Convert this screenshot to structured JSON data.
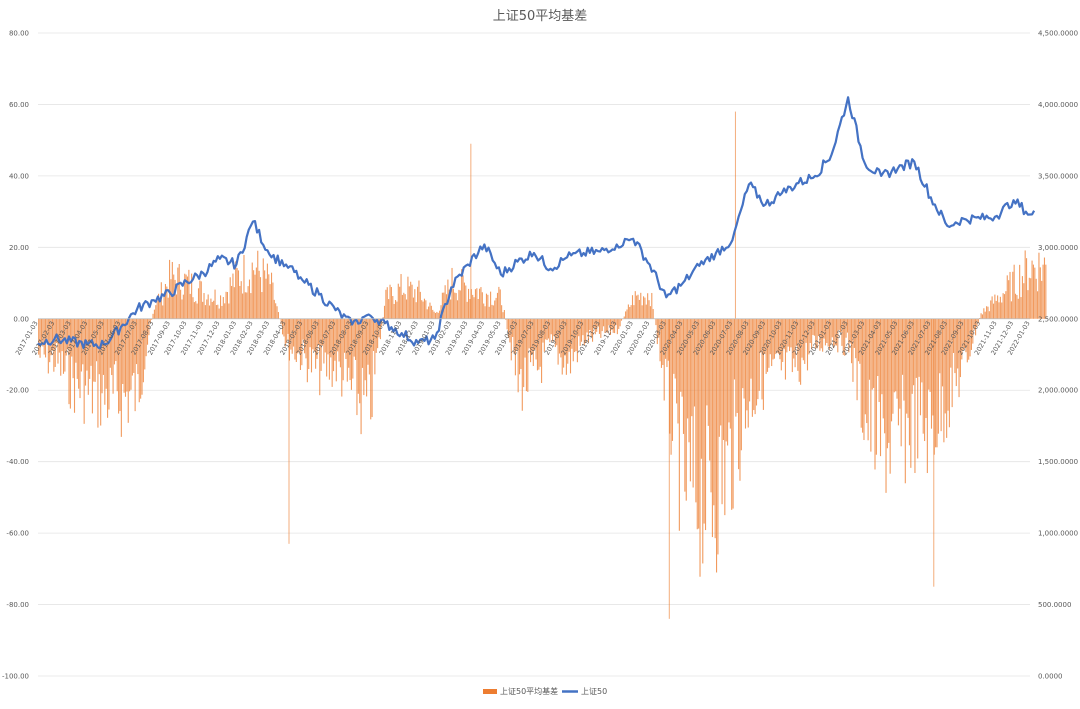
{
  "chart_data": {
    "type": "bar+line",
    "title": "上证50平均基差",
    "legend": {
      "placement": "bottom",
      "entries": [
        {
          "name": "上证50平均基差",
          "type": "bar",
          "color": "#ED7D31"
        },
        {
          "name": "上证50",
          "type": "line",
          "color": "#4472C4"
        }
      ]
    },
    "grid": true,
    "left_axis": {
      "ylim": [
        -100,
        80
      ],
      "ticks": [
        "80.00",
        "60.00",
        "40.00",
        "20.00",
        "0.00",
        "-20.00",
        "-40.00",
        "-60.00",
        "-80.00",
        "-100.00"
      ],
      "tick_values": [
        80,
        60,
        40,
        20,
        0,
        -20,
        -40,
        -60,
        -80,
        -100
      ]
    },
    "right_axis": {
      "ylim": [
        0,
        4500
      ],
      "ticks": [
        "4,500.0000",
        "4,000.0000",
        "3,500.0000",
        "3,000.0000",
        "2,500.0000",
        "2,000.0000",
        "1,500.0000",
        "1,000.0000",
        "500.0000",
        "0.0000"
      ],
      "tick_values": [
        4500,
        4000,
        3500,
        3000,
        2500,
        2000,
        1500,
        1000,
        500,
        0
      ]
    },
    "x_ticks": [
      "2017-01-03",
      "2017-02-03",
      "2017-03-03",
      "2017-04-03",
      "2017-05-03",
      "2017-06-03",
      "2017-07-03",
      "2017-08-03",
      "2017-09-03",
      "2017-10-03",
      "2017-11-03",
      "2017-12-03",
      "2018-01-03",
      "2018-02-03",
      "2018-03-03",
      "2018-04-03",
      "2018-05-03",
      "2018-06-03",
      "2018-07-03",
      "2018-08-03",
      "2018-09-03",
      "2018-10-03",
      "2018-11-03",
      "2018-12-03",
      "2019-01-03",
      "2019-02-03",
      "2019-03-03",
      "2019-04-03",
      "2019-05-03",
      "2019-06-03",
      "2019-07-03",
      "2019-08-03",
      "2019-09-03",
      "2019-10-03",
      "2019-11-03",
      "2019-12-03",
      "2020-01-03",
      "2020-02-03",
      "2020-03-03",
      "2020-04-03",
      "2020-05-03",
      "2020-06-03",
      "2020-07-03",
      "2020-08-03",
      "2020-09-03",
      "2020-10-03",
      "2020-11-03",
      "2020-12-03",
      "2021-01-03",
      "2021-02-03",
      "2021-03-03",
      "2021-04-03",
      "2021-05-03",
      "2021-06-03",
      "2021-07-03",
      "2021-08-03",
      "2021-09-03",
      "2021-10-03",
      "2021-11-03",
      "2021-12-03",
      "2022-01-03"
    ],
    "bar_series": {
      "name": "上证50平均基差",
      "x": [
        "2017-01",
        "2017-02",
        "2017-03",
        "2017-04",
        "2017-05",
        "2017-06",
        "2017-07",
        "2017-08",
        "2017-09",
        "2017-10",
        "2017-11",
        "2017-12",
        "2018-01",
        "2018-02",
        "2018-03",
        "2018-04",
        "2018-05",
        "2018-06",
        "2018-07",
        "2018-08",
        "2018-09",
        "2018-10",
        "2018-11",
        "2018-12",
        "2019-01",
        "2019-02",
        "2019-03",
        "2019-04",
        "2019-05",
        "2019-06",
        "2019-07",
        "2019-08",
        "2019-09",
        "2019-10",
        "2019-11",
        "2019-12",
        "2020-01",
        "2020-02",
        "2020-03",
        "2020-04",
        "2020-05",
        "2020-06",
        "2020-07",
        "2020-08",
        "2020-09",
        "2020-10",
        "2020-11",
        "2020-12",
        "2021-01",
        "2021-02",
        "2021-03",
        "2021-04",
        "2021-05",
        "2021-06",
        "2021-07",
        "2021-08",
        "2021-09",
        "2021-10",
        "2021-11",
        "2021-12",
        "2022-01"
      ],
      "values": [
        -14,
        -16,
        -24,
        -28,
        -30,
        -31,
        -28,
        5,
        16,
        14,
        10,
        8,
        16,
        20,
        14,
        -10,
        -15,
        -20,
        -18,
        -28,
        -35,
        8,
        12,
        10,
        2,
        14,
        12,
        10,
        8,
        -25,
        -22,
        -10,
        -18,
        -8,
        -6,
        -4,
        8,
        10,
        -30,
        -62,
        -68,
        -66,
        -50,
        -30,
        -22,
        -20,
        -18,
        -10,
        -8,
        -10,
        -38,
        -48,
        -46,
        -40,
        -42,
        -30,
        -18,
        2,
        8,
        14,
        20
      ],
      "spikes": [
        {
          "x": "2018-04",
          "value": -63
        },
        {
          "x": "2019-03",
          "value": 49
        },
        {
          "x": "2020-03",
          "value": -84
        },
        {
          "x": "2020-07",
          "value": 58
        },
        {
          "x": "2021-07",
          "value": -75
        }
      ]
    },
    "line_series": {
      "name": "上证50",
      "x": [
        "2017-01",
        "2017-02",
        "2017-03",
        "2017-04",
        "2017-05",
        "2017-06",
        "2017-07",
        "2017-08",
        "2017-09",
        "2017-10",
        "2017-11",
        "2017-12",
        "2018-01",
        "2018-02",
        "2018-03",
        "2018-04",
        "2018-05",
        "2018-06",
        "2018-07",
        "2018-08",
        "2018-09",
        "2018-10",
        "2018-11",
        "2018-12",
        "2019-01",
        "2019-02",
        "2019-03",
        "2019-04",
        "2019-05",
        "2019-06",
        "2019-07",
        "2019-08",
        "2019-09",
        "2019-10",
        "2019-11",
        "2019-12",
        "2020-01",
        "2020-02",
        "2020-03",
        "2020-04",
        "2020-05",
        "2020-06",
        "2020-07",
        "2020-08",
        "2020-09",
        "2020-10",
        "2020-11",
        "2020-12",
        "2021-01",
        "2021-02",
        "2021-03",
        "2021-04",
        "2021-05",
        "2021-06",
        "2021-07",
        "2021-08",
        "2021-09",
        "2021-10",
        "2021-11",
        "2021-12",
        "2022-01"
      ],
      "values": [
        2330,
        2360,
        2340,
        2320,
        2320,
        2440,
        2570,
        2630,
        2680,
        2760,
        2820,
        2920,
        2880,
        3180,
        2950,
        2880,
        2770,
        2670,
        2560,
        2460,
        2530,
        2470,
        2400,
        2330,
        2360,
        2720,
        2880,
        3020,
        2810,
        2900,
        2960,
        2850,
        2930,
        2960,
        2970,
        3020,
        3060,
        2880,
        2650,
        2750,
        2870,
        2960,
        3050,
        3440,
        3300,
        3380,
        3450,
        3500,
        3650,
        4050,
        3590,
        3500,
        3550,
        3600,
        3350,
        3150,
        3200,
        3200,
        3220,
        3330,
        3230
      ]
    }
  }
}
